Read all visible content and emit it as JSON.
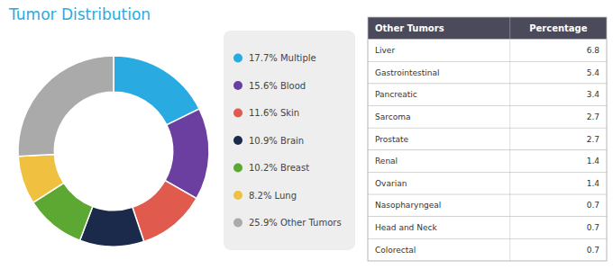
{
  "chart_data": [
    {
      "type": "pie",
      "title": "Tumor Distribution",
      "categories": [
        "17.7% Multiple",
        "15.6% Blood",
        "11.6% Skin",
        "10.9% Brain",
        "10.2% Breast",
        "8.2% Lung",
        "25.9% Other Tumors"
      ],
      "values": [
        17.7,
        15.6,
        11.6,
        10.9,
        10.2,
        8.2,
        25.9
      ],
      "colors": [
        "#29ABE2",
        "#6B3FA0",
        "#E05A4E",
        "#1B2A4A",
        "#5DA832",
        "#F0C040",
        "#AAAAAA"
      ],
      "legend": "right"
    },
    {
      "type": "table",
      "columns": [
        "Other Tumors",
        "Percentage"
      ],
      "categories": [
        "Liver",
        "Gastrointestinal",
        "Pancreatic",
        "Sarcoma",
        "Prostate",
        "Renal",
        "Ovarian",
        "Nasopharyngeal",
        "Head and Neck",
        "Colorectal"
      ],
      "values": [
        6.8,
        5.4,
        3.4,
        2.7,
        2.7,
        1.4,
        1.4,
        0.7,
        0.7,
        0.7
      ]
    }
  ]
}
